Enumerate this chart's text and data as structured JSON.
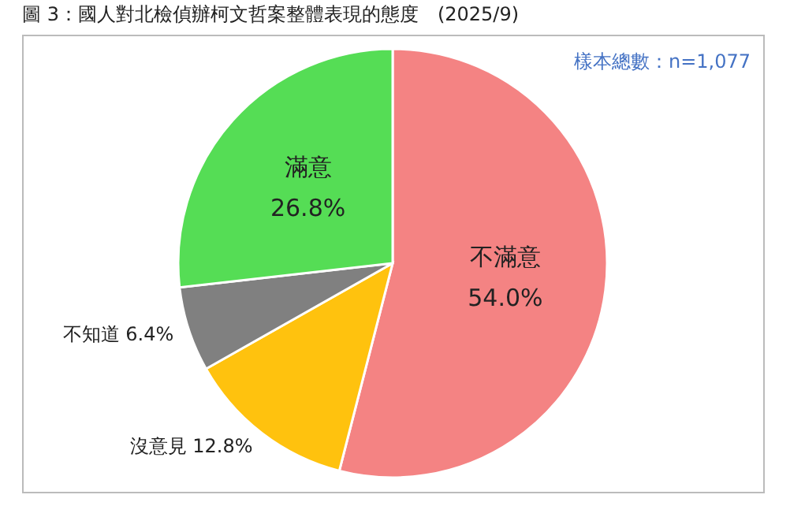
{
  "chart_data": {
    "type": "pie",
    "title": "圖 3：國人對北檢偵辦柯文哲案整體表現的態度　(2025/9)",
    "categories": [
      "不滿意",
      "沒意見",
      "不知道",
      "滿意"
    ],
    "values": [
      54.0,
      12.8,
      6.4,
      26.8
    ],
    "value_labels": [
      "54.0%",
      "12.8%",
      "6.4%",
      "26.8%"
    ],
    "colors": [
      "#f48383",
      "#ffc20e",
      "#808080",
      "#55dd55"
    ],
    "annotations": [
      "樣本總數：n=1,077"
    ],
    "legend": false
  }
}
